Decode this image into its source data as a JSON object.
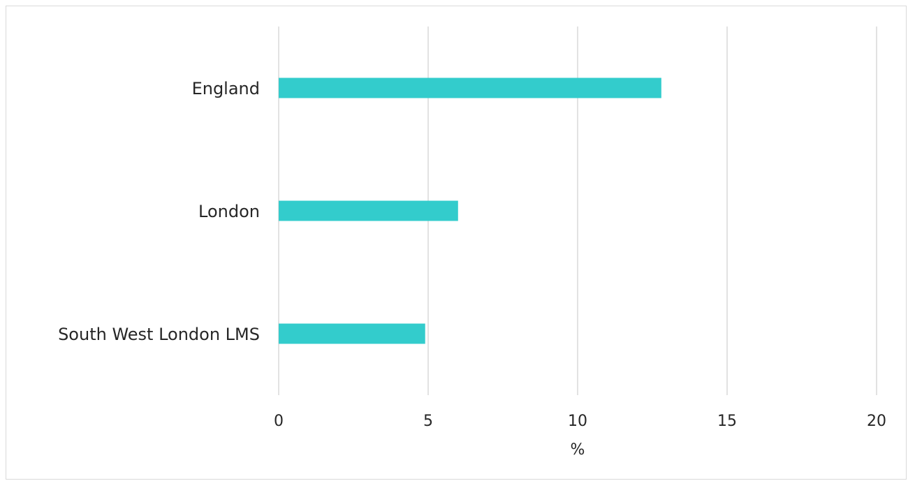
{
  "chart_data": {
    "type": "bar",
    "orientation": "horizontal",
    "categories": [
      "England",
      "London",
      "South West London LMS"
    ],
    "values": [
      12.8,
      6.0,
      4.9
    ],
    "xlabel": "%",
    "ylabel": "",
    "xlim": [
      0,
      20
    ],
    "xticks": [
      0,
      5,
      10,
      15,
      20
    ],
    "xtick_labels": [
      "0",
      "5",
      "10",
      "15",
      "20"
    ],
    "grid": "vertical",
    "legend": "none",
    "bar_color": "#33CCCC",
    "grid_color": "#D9D9D9",
    "text_color": "#262626"
  }
}
